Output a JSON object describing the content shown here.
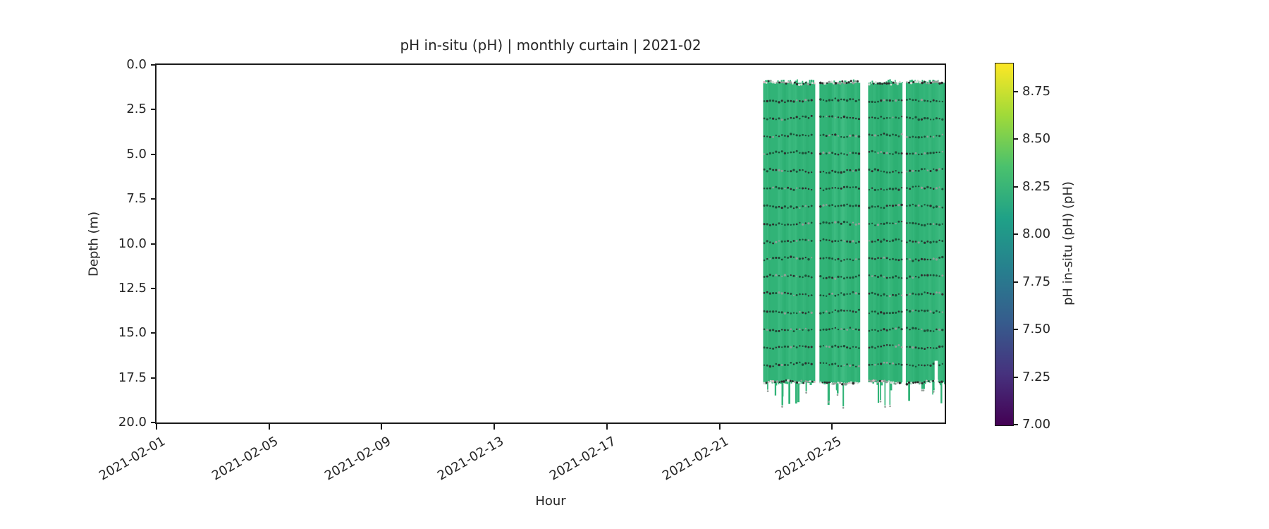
{
  "chart_data": {
    "type": "heatmap",
    "subtype": "time-depth curtain plot (pcolormesh with sample-point scatter)",
    "title": "pH in-situ (pH) | monthly curtain | 2021-02",
    "xlabel": "Hour",
    "ylabel": "Depth (m)",
    "x_axis": {
      "start": "2021-02-01",
      "end": "2021-03-01",
      "span_days": 28,
      "ticks": [
        {
          "label": "2021-02-01",
          "day": 0
        },
        {
          "label": "2021-02-05",
          "day": 4
        },
        {
          "label": "2021-02-09",
          "day": 8
        },
        {
          "label": "2021-02-13",
          "day": 12
        },
        {
          "label": "2021-02-17",
          "day": 16
        },
        {
          "label": "2021-02-21",
          "day": 20
        },
        {
          "label": "2021-02-25",
          "day": 24
        }
      ],
      "tick_rotation_deg": 30
    },
    "y_axis": {
      "min": 0.0,
      "max": 20.0,
      "inverted_depth": true,
      "ticks": [
        {
          "label": "0.0",
          "m": 0.0
        },
        {
          "label": "2.5",
          "m": 2.5
        },
        {
          "label": "5.0",
          "m": 5.0
        },
        {
          "label": "7.5",
          "m": 7.5
        },
        {
          "label": "10.0",
          "m": 10.0
        },
        {
          "label": "12.5",
          "m": 12.5
        },
        {
          "label": "15.0",
          "m": 15.0
        },
        {
          "label": "17.5",
          "m": 17.5
        },
        {
          "label": "20.0",
          "m": 20.0
        }
      ]
    },
    "colorbar": {
      "label": "pH in-situ (pH) (pH)",
      "vmin": 7.0,
      "vmax": 8.9,
      "colormap": "viridis",
      "gradient_stops": [
        "#440154",
        "#46327e",
        "#365c8d",
        "#277f8e",
        "#1fa187",
        "#4ac16d",
        "#a0da39",
        "#fde725"
      ],
      "ticks": [
        {
          "label": "8.75",
          "v": 8.75
        },
        {
          "label": "8.50",
          "v": 8.5
        },
        {
          "label": "8.25",
          "v": 8.25
        },
        {
          "label": "8.00",
          "v": 8.0
        },
        {
          "label": "7.75",
          "v": 7.75
        },
        {
          "label": "7.50",
          "v": 7.5
        },
        {
          "label": "7.25",
          "v": 7.25
        },
        {
          "label": "7.00",
          "v": 7.0
        }
      ]
    },
    "data_value_ph_typical": 8.25,
    "data_top_depth_m": 1.0,
    "data_bottom_depth_m": 17.75,
    "dot_row_spacing_m": 0.985,
    "spike_max_depth_m": 19.1,
    "segments": [
      {
        "start_day": 21.55,
        "end_day": 23.4
      },
      {
        "start_day": 23.55,
        "end_day": 25.0
      },
      {
        "start_day": 25.28,
        "end_day": 26.5
      },
      {
        "start_day": 26.62,
        "end_day": 28.0
      }
    ],
    "gaps_within": [
      {
        "segment": 3,
        "rel_x": 0.74,
        "top_depth_m": 16.55
      }
    ],
    "colors": {
      "curtain_green": "#31b377",
      "stripe_light": "#47c289",
      "stripe_dark": "#27a96c",
      "dot_dark": "#1d5038",
      "dot_black": "#2e2e2e",
      "dot_grey": "#949e98",
      "dot_light": "#d3ddd6",
      "dot_pink": "#dfb9c4",
      "spine": "#1a1a1a"
    }
  }
}
